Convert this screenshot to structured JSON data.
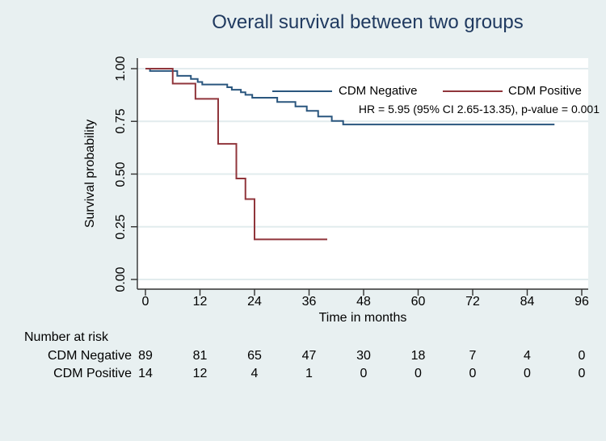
{
  "title": "Overall survival between two groups",
  "colors": {
    "background": "#e8f0f1",
    "plot_background": "#ffffff",
    "gridline": "#e2ecee",
    "axis": "#303030",
    "title_text": "#203a60",
    "navy": "#2a567e",
    "maroon": "#90353b",
    "text": "#000000"
  },
  "legend": {
    "entries": [
      {
        "label": "CDM Negative",
        "color_key": "navy"
      },
      {
        "label": "CDM Positive",
        "color_key": "maroon"
      }
    ]
  },
  "annotation": "HR = 5.95 (95% CI 2.65-13.35), p-value = 0.001",
  "chart_data": {
    "type": "line",
    "subtype": "kaplan-meier-step",
    "title": "Overall survival between two groups",
    "xlabel": "Time in months",
    "ylabel": "Survival probability",
    "xlim": [
      0,
      96
    ],
    "ylim": [
      0.0,
      1.0
    ],
    "x_ticks": [
      0,
      12,
      24,
      36,
      48,
      60,
      72,
      84,
      96
    ],
    "y_ticks": [
      "0.00",
      "0.25",
      "0.50",
      "0.75",
      "1.00"
    ],
    "y_tick_values": [
      0.0,
      0.25,
      0.5,
      0.75,
      1.0
    ],
    "grid": "horizontal",
    "legend_position": "inside-top-right",
    "series": [
      {
        "name": "CDM Negative",
        "color_key": "navy",
        "points": [
          [
            0,
            1.0
          ],
          [
            1,
            0.989
          ],
          [
            7,
            0.966
          ],
          [
            10,
            0.951
          ],
          [
            11.5,
            0.937
          ],
          [
            12.5,
            0.925
          ],
          [
            18,
            0.912
          ],
          [
            19,
            0.9
          ],
          [
            21,
            0.888
          ],
          [
            22,
            0.876
          ],
          [
            23.5,
            0.862
          ],
          [
            29,
            0.842
          ],
          [
            33,
            0.821
          ],
          [
            35.5,
            0.8
          ],
          [
            38,
            0.773
          ],
          [
            41,
            0.752
          ],
          [
            43.5,
            0.735
          ]
        ],
        "end_time": 90
      },
      {
        "name": "CDM Positive",
        "color_key": "maroon",
        "points": [
          [
            0,
            1.0
          ],
          [
            6,
            0.929
          ],
          [
            11,
            0.857
          ],
          [
            16,
            0.643
          ],
          [
            20,
            0.479
          ],
          [
            22,
            0.381
          ],
          [
            24,
            0.19
          ]
        ],
        "end_time": 40
      }
    ],
    "risk_table": {
      "title": "Number at risk",
      "times": [
        0,
        12,
        24,
        36,
        48,
        60,
        72,
        84,
        96
      ],
      "rows": [
        {
          "label": "CDM Negative",
          "counts": [
            89,
            81,
            65,
            47,
            30,
            18,
            7,
            4,
            0
          ]
        },
        {
          "label": "CDM Positive",
          "counts": [
            14,
            12,
            4,
            1,
            0,
            0,
            0,
            0,
            0
          ]
        }
      ]
    }
  }
}
